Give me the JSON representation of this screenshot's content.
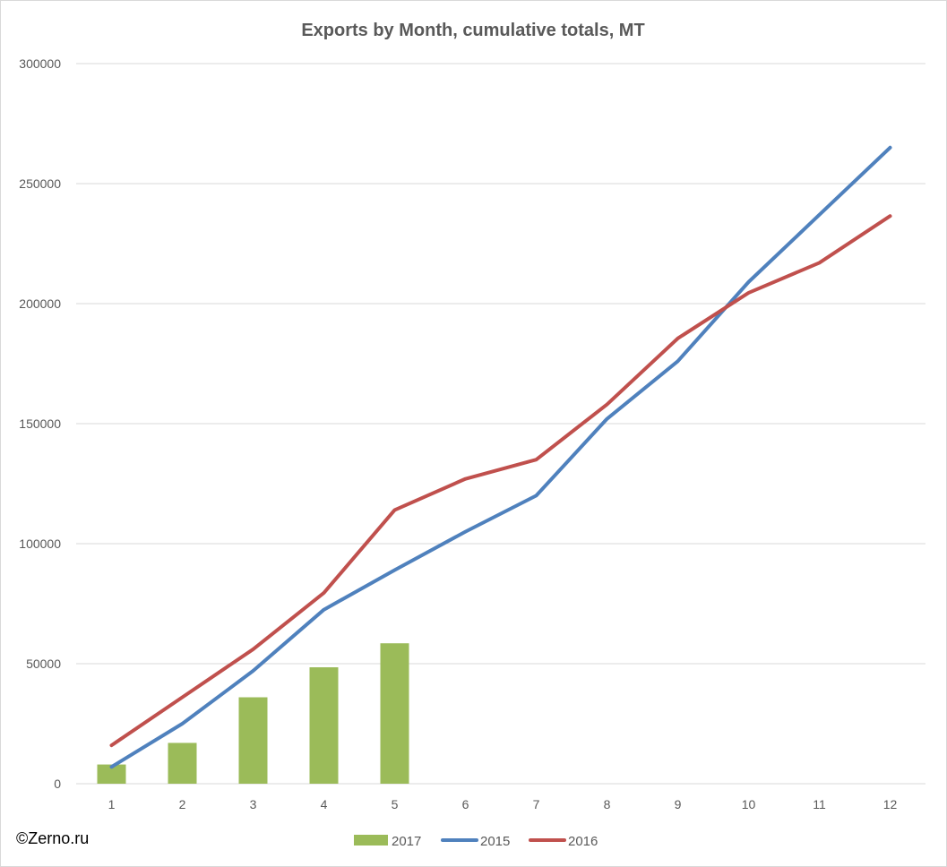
{
  "chart_data": {
    "type": "bar",
    "title": "Exports by Month, cumulative totals, MT",
    "categories": [
      "1",
      "2",
      "3",
      "4",
      "5",
      "6",
      "7",
      "8",
      "9",
      "10",
      "11",
      "12"
    ],
    "ylim": [
      0,
      300000
    ],
    "yticks": [
      "0",
      "50000",
      "100000",
      "150000",
      "200000",
      "250000",
      "300000"
    ],
    "grid": true,
    "legend_position": "bottom",
    "series": [
      {
        "name": "2017",
        "type": "bar",
        "color": "#9bbb59",
        "values": [
          8000,
          17000,
          36000,
          48500,
          58500,
          null,
          null,
          null,
          null,
          null,
          null,
          null
        ]
      },
      {
        "name": "2015",
        "type": "line",
        "color": "#4f81bd",
        "values": [
          7000,
          25000,
          47000,
          72500,
          89000,
          105000,
          120000,
          152000,
          176000,
          209000,
          237000,
          265000
        ]
      },
      {
        "name": "2016",
        "type": "line",
        "color": "#c0504d",
        "values": [
          16000,
          36000,
          56000,
          79500,
          114000,
          127000,
          135000,
          158000,
          185500,
          204500,
          217000,
          236500
        ]
      }
    ]
  },
  "credit": "©Zerno.ru"
}
